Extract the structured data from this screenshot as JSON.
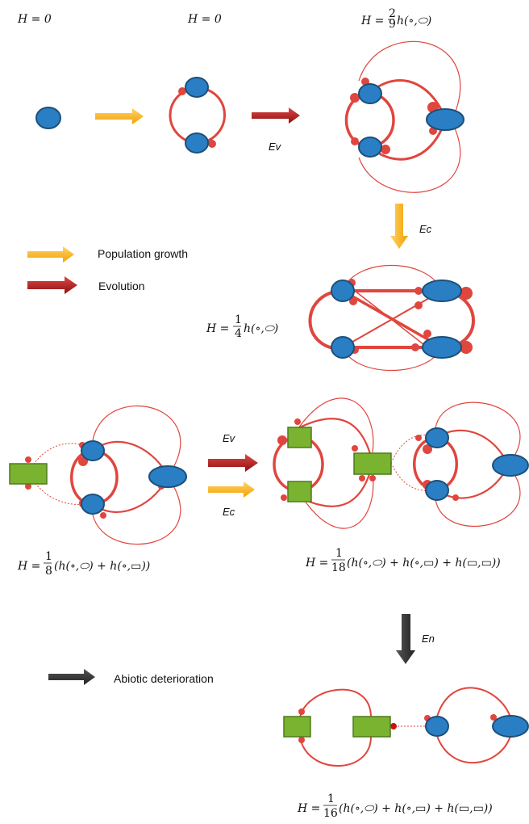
{
  "colors": {
    "organism_blue": "#2a7fc4",
    "organism_outline": "#1d4f7a",
    "producer_green": "#7ab330",
    "producer_outline": "#4e7a1c",
    "link_red": "#e0463e",
    "growth_arrow": "#ffb81c",
    "evolution_arrow": "#b01818",
    "abiotic_arrow": "#3a3a3a"
  },
  "formulas": {
    "h0_a": "H = 0",
    "h0_b": "H = 0",
    "h_top_right_prefix": "H = ",
    "h_top_right_num": "2",
    "h_top_right_den": "9",
    "h_top_right_tail": "h(∘,⬭)",
    "h_quarter_prefix": "H = ",
    "h_quarter_num": "1",
    "h_quarter_den": "4",
    "h_quarter_tail": "h(∘,⬭)",
    "h_eighth_prefix": "H = ",
    "h_eighth_num": "1",
    "h_eighth_den": "8",
    "h_eighth_tail": "(h(∘,⬭) + h(∘,▭))",
    "h_18_prefix": "H = ",
    "h_18_num": "1",
    "h_18_den": "18",
    "h_18_tail": "(h(∘,⬭) + h(∘,▭) + h(▭,▭))",
    "h_16_prefix": "H = ",
    "h_16_num": "1",
    "h_16_den": "16",
    "h_16_tail": "(h(∘,⬭) + h(∘,▭) + h(▭,▭))"
  },
  "arrow_tags": {
    "ev_top": "Ev",
    "ec_right": "Ec",
    "ev_mid": "Ev",
    "ec_mid": "Ec",
    "en": "En"
  },
  "legend": {
    "growth": "Population growth",
    "evolution": "Evolution",
    "abiotic": "Abiotic deterioration"
  }
}
